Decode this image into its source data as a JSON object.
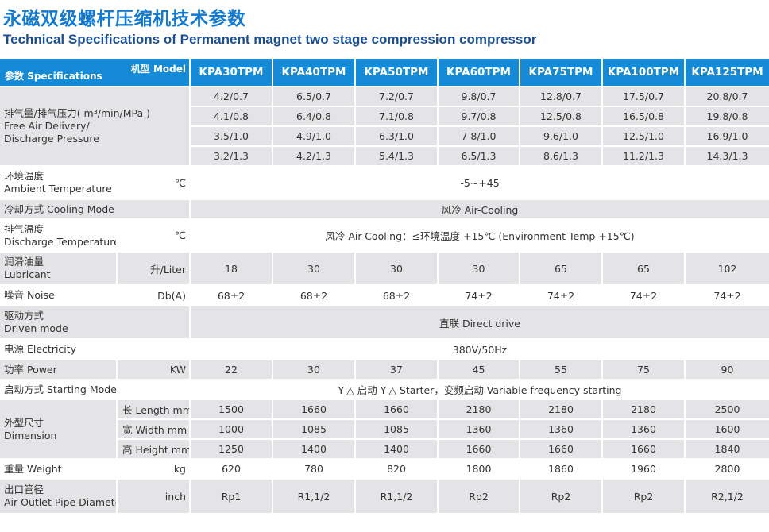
{
  "title_cn": "永磁双级螺杆压缩机技术参数",
  "title_en": "Technical Specifications of Permanent magnet two stage compression compressor",
  "header": {
    "model_label": "机型 Model",
    "spec_label": "参数 Specifications",
    "models": [
      "KPA30TPM",
      "KPA40TPM",
      "KPA50TPM",
      "KPA60TPM",
      "KPA75TPM",
      "KPA100TPM",
      "KPA125TPM"
    ]
  },
  "rows": {
    "fad": {
      "label_cn": "排气量/排气压力( m³/min/MPa )",
      "label_en1": "Free Air Delivery/",
      "label_en2": "Discharge Pressure",
      "values": [
        [
          "4.2/0.7",
          "6.5/0.7",
          "7.2/0.7",
          "9.8/0.7",
          "12.8/0.7",
          "17.5/0.7",
          "20.8/0.7"
        ],
        [
          "4.1/0.8",
          "6.4/0.8",
          "7.1/0.8",
          "9.7/0.8",
          "12.5/0.8",
          "16.5/0.8",
          "19.8/0.8"
        ],
        [
          "3.5/1.0",
          "4.9/1.0",
          "6.3/1.0",
          "7 8/1.0",
          "9.6/1.0",
          "12.5/1.0",
          "16.9/1.0"
        ],
        [
          "3.2/1.3",
          "4.2/1.3",
          "5.4/1.3",
          "6.5/1.3",
          "8.6/1.3",
          "11.2/1.3",
          "14.3/1.3"
        ]
      ]
    },
    "ambient": {
      "label_cn": "环境温度",
      "label_en": "Ambient Temperature",
      "unit": "℃",
      "value": "-5~+45"
    },
    "cooling": {
      "label": "冷却方式 Cooling Mode",
      "value": "风冷 Air-Cooling"
    },
    "discharge_temp": {
      "label_cn": "排气温度",
      "label_en": "Discharge Temperature",
      "unit": "℃",
      "value": "风冷 Air-Cooling：≤环境温度 +15℃ (Environment Temp +15℃)"
    },
    "lubricant": {
      "label_cn": "润滑油量",
      "label_en": "Lubricant",
      "unit": "升/Liter",
      "values": [
        "18",
        "30",
        "30",
        "30",
        "65",
        "65",
        "102"
      ]
    },
    "noise": {
      "label": "噪音 Noise",
      "unit": "Db(A)",
      "values": [
        "68±2",
        "68±2",
        "68±2",
        "74±2",
        "74±2",
        "74±2",
        "74±2"
      ]
    },
    "drive": {
      "label_cn": "驱动方式",
      "label_en": "Driven mode",
      "value": "直联 Direct drive"
    },
    "electricity": {
      "label": "电源 Electricity",
      "value": "380V/50Hz"
    },
    "power": {
      "label": "功率 Power",
      "unit": "KW",
      "values": [
        "22",
        "30",
        "37",
        "45",
        "55",
        "75",
        "90"
      ]
    },
    "starting": {
      "label": "启动方式 Starting Mode",
      "value": "Y-△ 启动 Y-△ Starter，变频启动 Variable frequency starting"
    },
    "dimension": {
      "label_cn": "外型尺寸",
      "label_en": "Dimension",
      "rows": [
        {
          "unit": "长 Length mm",
          "values": [
            "1500",
            "1660",
            "1660",
            "2180",
            "2180",
            "2180",
            "2500"
          ]
        },
        {
          "unit": "宽  Width mm",
          "values": [
            "1000",
            "1085",
            "1085",
            "1360",
            "1360",
            "1360",
            "1600"
          ]
        },
        {
          "unit": "高  Height mm",
          "values": [
            "1250",
            "1400",
            "1400",
            "1660",
            "1660",
            "1660",
            "1840"
          ]
        }
      ]
    },
    "weight": {
      "label": "重量 Weight",
      "unit": "kg",
      "values": [
        "620",
        "780",
        "820",
        "1800",
        "1860",
        "1960",
        "2800"
      ]
    },
    "outlet": {
      "label_cn": "出口管径",
      "label_en": "Air Outlet Pipe Diameter",
      "unit": "inch",
      "values": [
        "Rp1",
        "R1,1/2",
        "R1,1/2",
        "Rp2",
        "Rp2",
        "Rp2",
        "R2,1/2"
      ]
    }
  }
}
